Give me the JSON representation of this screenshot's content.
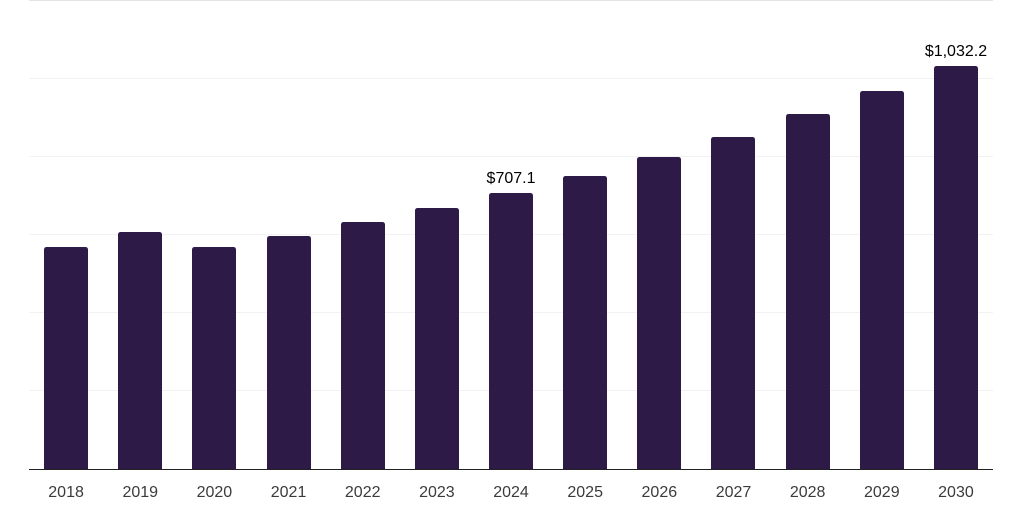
{
  "chart_data": {
    "type": "bar",
    "title": "",
    "xlabel": "",
    "ylabel": "",
    "categories": [
      "2018",
      "2019",
      "2020",
      "2021",
      "2022",
      "2023",
      "2024",
      "2025",
      "2026",
      "2027",
      "2028",
      "2029",
      "2030"
    ],
    "values": [
      569,
      606,
      567,
      597,
      633,
      669,
      707.1,
      750,
      800,
      851,
      908,
      968,
      1032.2
    ],
    "annotations": [
      {
        "category": "2024",
        "text": "$707.1"
      },
      {
        "category": "2030",
        "text": "$1,032.2"
      }
    ],
    "ylim": [
      0,
      1200
    ],
    "gridline_step": 200,
    "grid": true,
    "legend": "none",
    "bar_color": "#2e1a47",
    "axis_line_color": "#222222",
    "gridline_color": "#f2f2f2",
    "top_gridline_color": "#e4e4e4",
    "tick_label_color": "#3b3b3b",
    "annotation_color": "#000000",
    "background_color": "#ffffff"
  }
}
